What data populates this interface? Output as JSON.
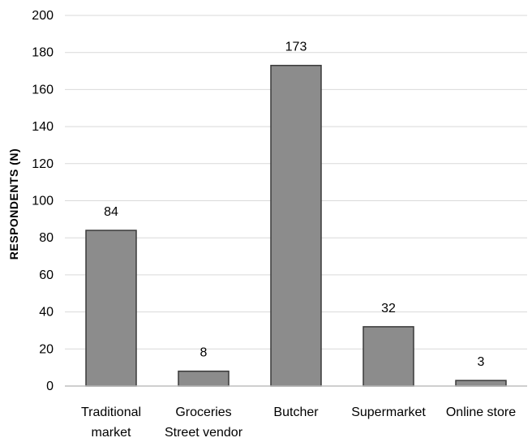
{
  "chart_data": {
    "type": "bar",
    "categories": [
      [
        "Traditional",
        "market"
      ],
      [
        "Groceries",
        "Street vendor"
      ],
      [
        "Butcher"
      ],
      [
        "Supermarket"
      ],
      [
        "Online store"
      ]
    ],
    "values": [
      84,
      8,
      173,
      32,
      3
    ],
    "data_labels": [
      "84",
      "8",
      "173",
      "32",
      "3"
    ],
    "title": "",
    "xlabel": "",
    "ylabel": "RESPONDENTS (N)",
    "ylim": [
      0,
      200
    ],
    "yticks": [
      0,
      20,
      40,
      60,
      80,
      100,
      120,
      140,
      160,
      180,
      200
    ],
    "grid": true,
    "legend": "none",
    "colors": {
      "bar_fill": "#8c8c8c",
      "bar_stroke": "#3a3a3a",
      "grid": "#d9d9d9",
      "axis": "#bfbfbf"
    }
  }
}
